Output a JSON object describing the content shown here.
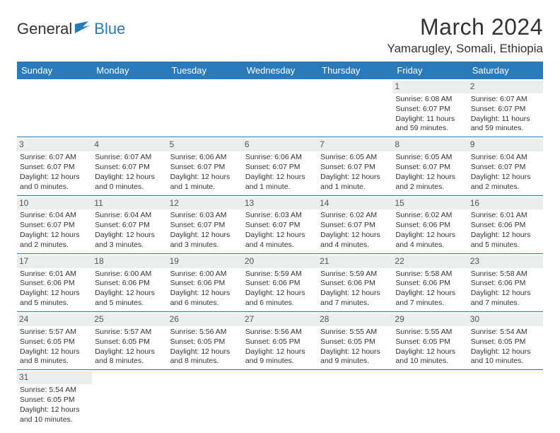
{
  "logo": {
    "part1": "General",
    "part2": "Blue"
  },
  "title": "March 2024",
  "location": "Yamarugley, Somali, Ethiopia",
  "colors": {
    "brand": "#2a7ab9",
    "daybg": "#eceded",
    "text": "#333333"
  },
  "weekdays": [
    "Sunday",
    "Monday",
    "Tuesday",
    "Wednesday",
    "Thursday",
    "Friday",
    "Saturday"
  ],
  "weeks": [
    [
      null,
      null,
      null,
      null,
      null,
      {
        "n": "1",
        "sunrise": "6:08 AM",
        "sunset": "6:07 PM",
        "daylight": "11 hours and 59 minutes."
      },
      {
        "n": "2",
        "sunrise": "6:07 AM",
        "sunset": "6:07 PM",
        "daylight": "11 hours and 59 minutes."
      }
    ],
    [
      {
        "n": "3",
        "sunrise": "6:07 AM",
        "sunset": "6:07 PM",
        "daylight": "12 hours and 0 minutes."
      },
      {
        "n": "4",
        "sunrise": "6:07 AM",
        "sunset": "6:07 PM",
        "daylight": "12 hours and 0 minutes."
      },
      {
        "n": "5",
        "sunrise": "6:06 AM",
        "sunset": "6:07 PM",
        "daylight": "12 hours and 1 minute."
      },
      {
        "n": "6",
        "sunrise": "6:06 AM",
        "sunset": "6:07 PM",
        "daylight": "12 hours and 1 minute."
      },
      {
        "n": "7",
        "sunrise": "6:05 AM",
        "sunset": "6:07 PM",
        "daylight": "12 hours and 1 minute."
      },
      {
        "n": "8",
        "sunrise": "6:05 AM",
        "sunset": "6:07 PM",
        "daylight": "12 hours and 2 minutes."
      },
      {
        "n": "9",
        "sunrise": "6:04 AM",
        "sunset": "6:07 PM",
        "daylight": "12 hours and 2 minutes."
      }
    ],
    [
      {
        "n": "10",
        "sunrise": "6:04 AM",
        "sunset": "6:07 PM",
        "daylight": "12 hours and 2 minutes."
      },
      {
        "n": "11",
        "sunrise": "6:04 AM",
        "sunset": "6:07 PM",
        "daylight": "12 hours and 3 minutes."
      },
      {
        "n": "12",
        "sunrise": "6:03 AM",
        "sunset": "6:07 PM",
        "daylight": "12 hours and 3 minutes."
      },
      {
        "n": "13",
        "sunrise": "6:03 AM",
        "sunset": "6:07 PM",
        "daylight": "12 hours and 4 minutes."
      },
      {
        "n": "14",
        "sunrise": "6:02 AM",
        "sunset": "6:07 PM",
        "daylight": "12 hours and 4 minutes."
      },
      {
        "n": "15",
        "sunrise": "6:02 AM",
        "sunset": "6:06 PM",
        "daylight": "12 hours and 4 minutes."
      },
      {
        "n": "16",
        "sunrise": "6:01 AM",
        "sunset": "6:06 PM",
        "daylight": "12 hours and 5 minutes."
      }
    ],
    [
      {
        "n": "17",
        "sunrise": "6:01 AM",
        "sunset": "6:06 PM",
        "daylight": "12 hours and 5 minutes."
      },
      {
        "n": "18",
        "sunrise": "6:00 AM",
        "sunset": "6:06 PM",
        "daylight": "12 hours and 5 minutes."
      },
      {
        "n": "19",
        "sunrise": "6:00 AM",
        "sunset": "6:06 PM",
        "daylight": "12 hours and 6 minutes."
      },
      {
        "n": "20",
        "sunrise": "5:59 AM",
        "sunset": "6:06 PM",
        "daylight": "12 hours and 6 minutes."
      },
      {
        "n": "21",
        "sunrise": "5:59 AM",
        "sunset": "6:06 PM",
        "daylight": "12 hours and 7 minutes."
      },
      {
        "n": "22",
        "sunrise": "5:58 AM",
        "sunset": "6:06 PM",
        "daylight": "12 hours and 7 minutes."
      },
      {
        "n": "23",
        "sunrise": "5:58 AM",
        "sunset": "6:06 PM",
        "daylight": "12 hours and 7 minutes."
      }
    ],
    [
      {
        "n": "24",
        "sunrise": "5:57 AM",
        "sunset": "6:05 PM",
        "daylight": "12 hours and 8 minutes."
      },
      {
        "n": "25",
        "sunrise": "5:57 AM",
        "sunset": "6:05 PM",
        "daylight": "12 hours and 8 minutes."
      },
      {
        "n": "26",
        "sunrise": "5:56 AM",
        "sunset": "6:05 PM",
        "daylight": "12 hours and 8 minutes."
      },
      {
        "n": "27",
        "sunrise": "5:56 AM",
        "sunset": "6:05 PM",
        "daylight": "12 hours and 9 minutes."
      },
      {
        "n": "28",
        "sunrise": "5:55 AM",
        "sunset": "6:05 PM",
        "daylight": "12 hours and 9 minutes."
      },
      {
        "n": "29",
        "sunrise": "5:55 AM",
        "sunset": "6:05 PM",
        "daylight": "12 hours and 10 minutes."
      },
      {
        "n": "30",
        "sunrise": "5:54 AM",
        "sunset": "6:05 PM",
        "daylight": "12 hours and 10 minutes."
      }
    ],
    [
      {
        "n": "31",
        "sunrise": "5:54 AM",
        "sunset": "6:05 PM",
        "daylight": "12 hours and 10 minutes."
      },
      null,
      null,
      null,
      null,
      null,
      null
    ]
  ],
  "labels": {
    "sunrise": "Sunrise:",
    "sunset": "Sunset:",
    "daylight": "Daylight:"
  }
}
